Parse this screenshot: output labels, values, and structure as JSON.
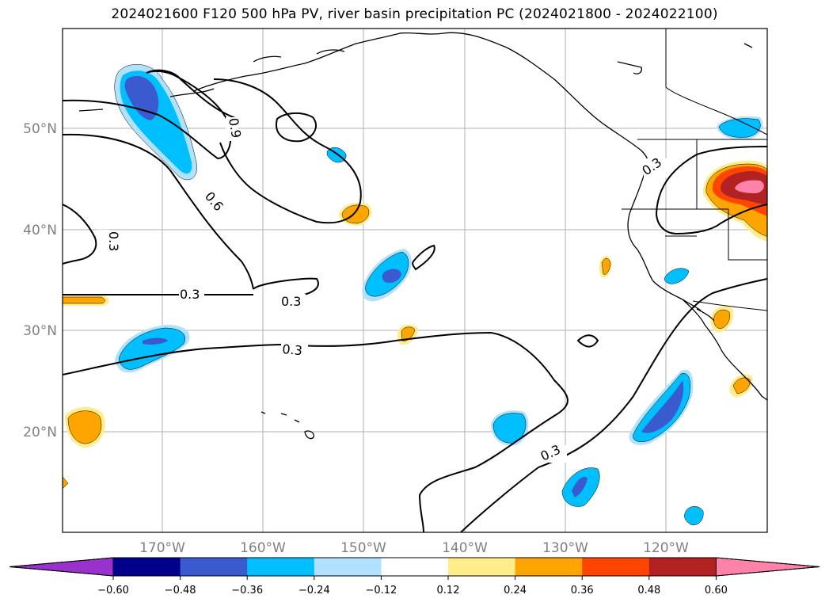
{
  "title": "2024021600 F120 500 hPa PV, river basin precipitation PC (2024021800 - 2024022100)",
  "map": {
    "lat_labels": [
      "50°N",
      "40°N",
      "30°N",
      "20°N"
    ],
    "lon_labels": [
      "170°W",
      "160°W",
      "150°W",
      "140°W",
      "130°W",
      "120°W"
    ],
    "pv_contour_labels": [
      "0.9",
      "0.6",
      "0.3",
      "0.3",
      "0.3",
      "0.3",
      "0.3",
      "0.3"
    ]
  },
  "colorbar": {
    "colors": [
      "#9932cc",
      "#00008b",
      "#3a5bcf",
      "#00bfff",
      "#b0e2ff",
      "#ffffff",
      "#ffec8b",
      "#ffa500",
      "#ff4500",
      "#b22222",
      "#ff82ab"
    ],
    "ticks": [
      "−0.60",
      "−0.48",
      "−0.36",
      "−0.24",
      "−0.12",
      "0.12",
      "0.24",
      "0.36",
      "0.48",
      "0.60"
    ]
  }
}
